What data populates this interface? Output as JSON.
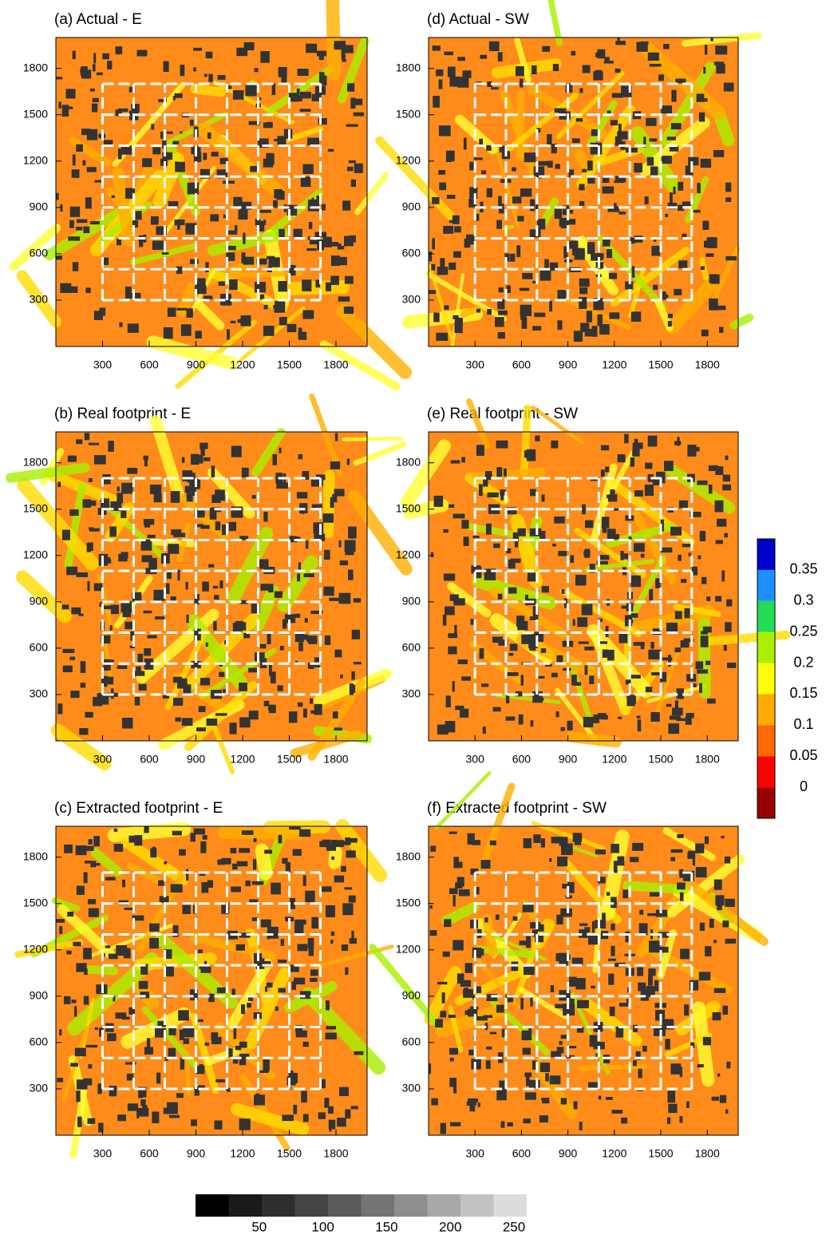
{
  "chart_data": [
    {
      "type": "heatmap",
      "title": "(a) Actual - E",
      "xlim": [
        0,
        2000
      ],
      "ylim": [
        0,
        2000
      ],
      "xticks": [
        300,
        600,
        900,
        1200,
        1500,
        1800
      ],
      "yticks": [
        300,
        600,
        900,
        1200,
        1500,
        1800
      ]
    },
    {
      "type": "heatmap",
      "title": "(b) Real footprint - E",
      "xlim": [
        0,
        2000
      ],
      "ylim": [
        0,
        2000
      ],
      "xticks": [
        300,
        600,
        900,
        1200,
        1500,
        1800
      ],
      "yticks": [
        300,
        600,
        900,
        1200,
        1500,
        1800
      ]
    },
    {
      "type": "heatmap",
      "title": "(c) Extracted footprint - E",
      "xlim": [
        0,
        2000
      ],
      "ylim": [
        0,
        2000
      ],
      "xticks": [
        300,
        600,
        900,
        1200,
        1500,
        1800
      ],
      "yticks": [
        300,
        600,
        900,
        1200,
        1500,
        1800
      ]
    },
    {
      "type": "heatmap",
      "title": "(d) Actual - SW",
      "xlim": [
        0,
        2000
      ],
      "ylim": [
        0,
        2000
      ],
      "xticks": [
        300,
        600,
        900,
        1200,
        1500,
        1800
      ],
      "yticks": [
        300,
        600,
        900,
        1200,
        1500,
        1800
      ]
    },
    {
      "type": "heatmap",
      "title": "(e) Real footprint - SW",
      "xlim": [
        0,
        2000
      ],
      "ylim": [
        0,
        2000
      ],
      "xticks": [
        300,
        600,
        900,
        1200,
        1500,
        1800
      ],
      "yticks": [
        300,
        600,
        900,
        1200,
        1500,
        1800
      ]
    },
    {
      "type": "heatmap",
      "title": "(f) Extracted footprint - SW",
      "xlim": [
        0,
        2000
      ],
      "ylim": [
        0,
        2000
      ],
      "xticks": [
        300,
        600,
        900,
        1200,
        1500,
        1800
      ],
      "yticks": [
        300,
        600,
        900,
        1200,
        1500,
        1800
      ]
    },
    {
      "type": "colorbar",
      "orientation": "vertical",
      "colors": [
        "#990000",
        "#ff0000",
        "#ff6a00",
        "#ffaa00",
        "#ffff00",
        "#a8f000",
        "#22dd55",
        "#1e8fff",
        "#0000cc"
      ],
      "ylim": [
        -0.05,
        0.4
      ],
      "yticks": [
        0,
        0.05,
        0.1,
        0.15,
        0.2,
        0.25,
        0.3,
        0.35
      ]
    },
    {
      "type": "colorbar",
      "orientation": "horizontal",
      "colors": [
        "#000000",
        "#1a1a1a",
        "#2e2e2e",
        "#444444",
        "#5a5a5a",
        "#747474",
        "#8e8e8e",
        "#a8a8a8",
        "#c2c2c2",
        "#dcdcdc"
      ],
      "xlim": [
        0,
        260
      ],
      "xticks": [
        50,
        100,
        150,
        200,
        250
      ]
    }
  ]
}
